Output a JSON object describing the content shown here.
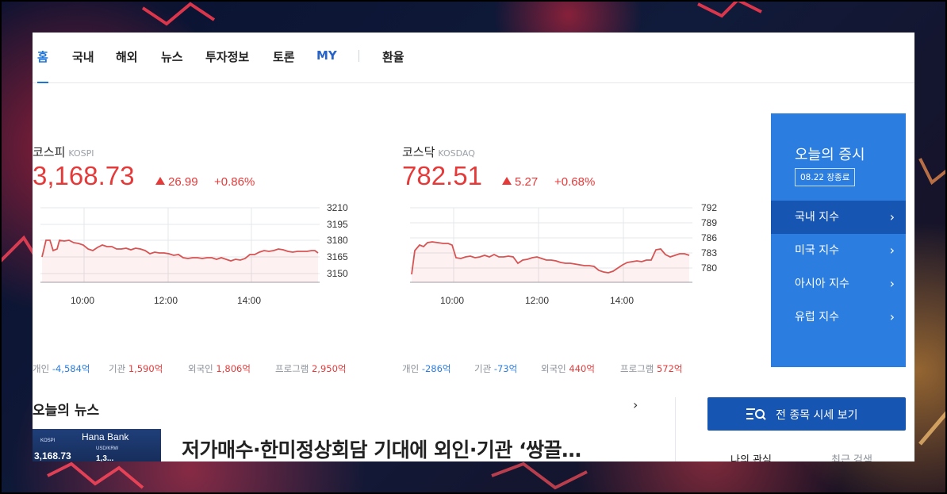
{
  "nav": {
    "items": [
      {
        "label": "홈",
        "state": "active"
      },
      {
        "label": "국내",
        "state": ""
      },
      {
        "label": "해외",
        "state": ""
      },
      {
        "label": "뉴스",
        "state": ""
      },
      {
        "label": "투자정보",
        "state": ""
      },
      {
        "label": "토론",
        "state": ""
      },
      {
        "label": "MY",
        "state": "my"
      },
      {
        "label": "환율",
        "state": ""
      }
    ]
  },
  "kospi": {
    "name": "코스피",
    "name_en": "KOSPI",
    "value": "3,168.73",
    "change": "26.99",
    "change_pct": "+0.86%",
    "chart": {
      "y_ticks": [
        "3210",
        "3195",
        "3180",
        "3165",
        "3150"
      ],
      "x_ticks": [
        "10:00",
        "12:00",
        "14:00"
      ]
    },
    "flows": [
      {
        "label": "개인",
        "value": "-4,584억",
        "sign": "neg"
      },
      {
        "label": "기관",
        "value": "1,590억",
        "sign": "pos"
      },
      {
        "label": "외국인",
        "value": "1,806억",
        "sign": "pos"
      },
      {
        "label": "프로그램",
        "value": "2,950억",
        "sign": "pos"
      }
    ]
  },
  "kosdaq": {
    "name": "코스닥",
    "name_en": "KOSDAQ",
    "value": "782.51",
    "change": "5.27",
    "change_pct": "+0.68%",
    "chart": {
      "y_ticks": [
        "792",
        "789",
        "786",
        "783",
        "780"
      ],
      "x_ticks": [
        "10:00",
        "12:00",
        "14:00"
      ]
    },
    "flows": [
      {
        "label": "개인",
        "value": "-286억",
        "sign": "neg"
      },
      {
        "label": "기관",
        "value": "-73억",
        "sign": "neg"
      },
      {
        "label": "외국인",
        "value": "440억",
        "sign": "pos"
      },
      {
        "label": "프로그램",
        "value": "572억",
        "sign": "pos"
      }
    ]
  },
  "today": {
    "title": "오늘의 증시",
    "date": "08.22 장종료",
    "items": [
      {
        "label": "국내 지수",
        "active": true
      },
      {
        "label": "미국 지수",
        "active": false
      },
      {
        "label": "아시아 지수",
        "active": false
      },
      {
        "label": "유럽 지수",
        "active": false
      }
    ]
  },
  "news": {
    "title": "오늘의 뉴스",
    "more": "›",
    "headline": "저가매수·한미정상회담 기대에 외인·기관 ‘쌍끌…",
    "thumb": {
      "logo": "Hana Bank",
      "t1": "KOSPI",
      "t2": "USD/KRW",
      "t3": "3,168.73",
      "t4": "1,3..."
    }
  },
  "all_button": {
    "label": "전 종목 시세 보기"
  },
  "tabs": {
    "my_interest": "나의 관심",
    "recent": "최근 검색"
  },
  "icons": {
    "chevron": "chevron-right-icon",
    "search_list": "search-list-icon"
  },
  "colors": {
    "up": "#e53a3a",
    "down": "#2b7de0",
    "accent": "#2b7de0",
    "dark_blue": "#1656b2"
  }
}
